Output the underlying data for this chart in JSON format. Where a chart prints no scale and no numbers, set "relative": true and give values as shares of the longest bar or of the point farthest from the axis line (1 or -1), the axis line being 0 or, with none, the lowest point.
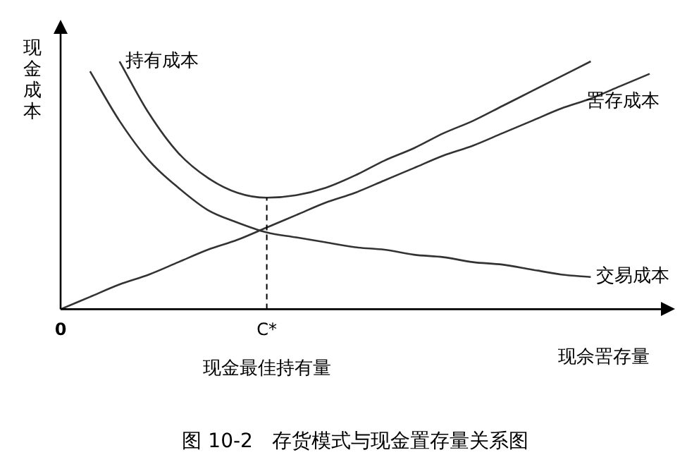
{
  "chart_data": {
    "type": "line",
    "title": "图 10-2   存货模式与现金置存量关系图",
    "xlabel": "现佘罟存量",
    "ylabel": "现金成本",
    "relative": true,
    "grid": false,
    "legend": false,
    "marker": "none",
    "line_style": "solid",
    "categories": [
      "0",
      null,
      null,
      null,
      null,
      null,
      null,
      "C*",
      null,
      null,
      null,
      null,
      null,
      null,
      null,
      null,
      null,
      null,
      null,
      null,
      null
    ],
    "series": [
      {
        "name": "持有成本",
        "color": "#333333",
        "values": [
          null,
          null,
          1.0,
          0.79,
          0.63,
          0.53,
          0.47,
          0.45,
          0.46,
          0.49,
          0.54,
          0.6,
          0.65,
          0.71,
          0.76,
          0.82,
          0.88,
          0.94,
          1.0,
          null,
          null
        ]
      },
      {
        "name": "罟存成本",
        "color": "#333333",
        "values": [
          0,
          0.05,
          0.1,
          0.14,
          0.19,
          0.24,
          0.28,
          0.33,
          0.38,
          0.43,
          0.47,
          0.52,
          0.57,
          0.62,
          0.66,
          0.71,
          0.76,
          0.81,
          0.85,
          0.9,
          0.95
        ]
      },
      {
        "name": "交易成本",
        "color": "#333333",
        "values": [
          null,
          0.96,
          0.76,
          0.6,
          0.49,
          0.4,
          0.35,
          0.31,
          0.29,
          0.27,
          0.25,
          0.24,
          0.22,
          0.21,
          0.19,
          0.18,
          0.16,
          0.14,
          0.13,
          null,
          null
        ]
      }
    ],
    "ref_lines": [
      {
        "axis": "x",
        "value": "C*",
        "line_style": "dashed",
        "color": "#000000"
      }
    ],
    "annotations": [
      "现金最佳持有量"
    ]
  }
}
